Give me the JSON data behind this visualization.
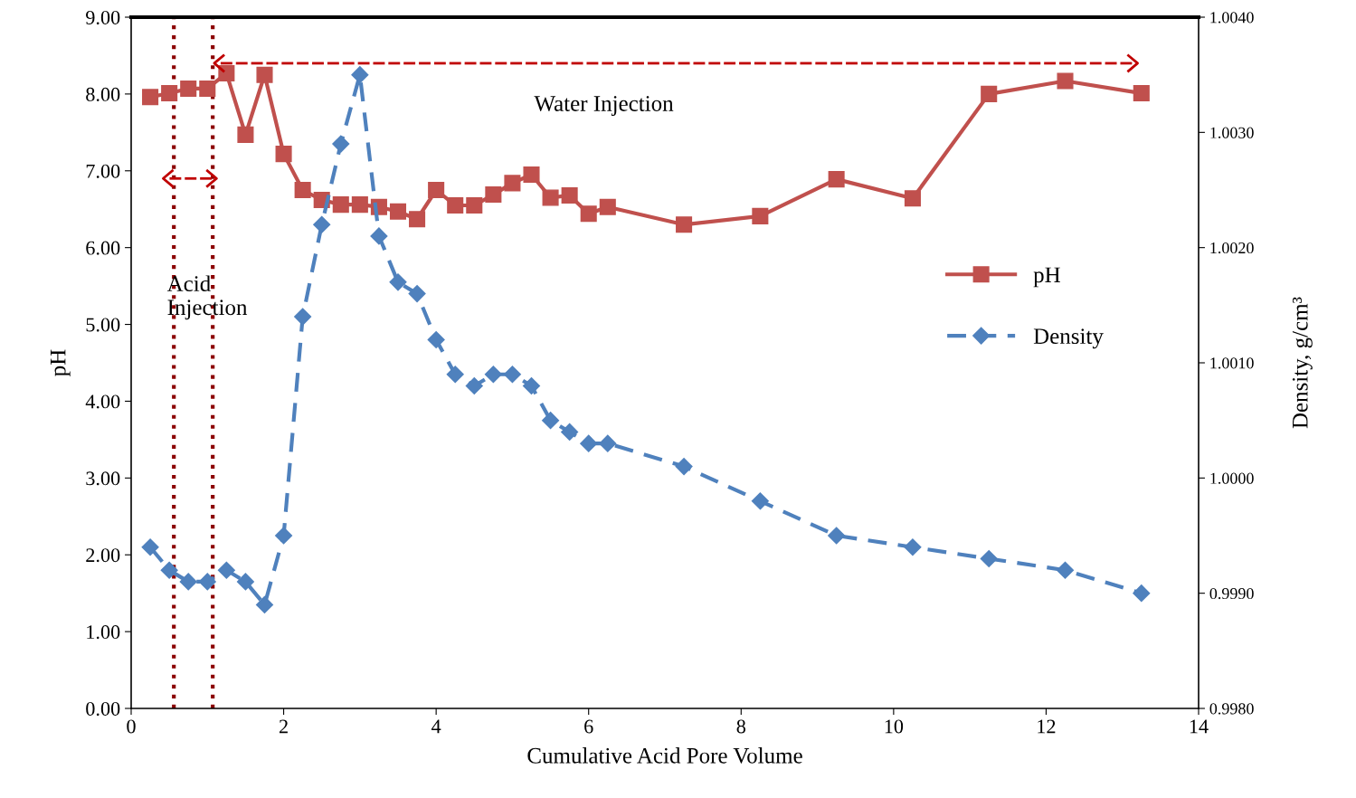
{
  "chart_data": {
    "type": "line",
    "xlabel": "Cumulative Acid Pore Volume",
    "ylabel": "pH",
    "y2label": "Density, g/cm³",
    "x": [
      0.25,
      0.5,
      0.75,
      1.0,
      1.25,
      1.5,
      1.75,
      2.0,
      2.25,
      2.5,
      2.75,
      3.0,
      3.25,
      3.5,
      3.75,
      4.0,
      4.25,
      4.5,
      4.75,
      5.0,
      5.25,
      5.5,
      5.75,
      6.0,
      6.25,
      7.25,
      8.25,
      9.25,
      10.25,
      11.25,
      12.25,
      13.25
    ],
    "series": [
      {
        "name": "pH",
        "color": "#c0504d",
        "marker": "square",
        "line_style": "solid",
        "values": [
          7.96,
          8.01,
          8.07,
          8.07,
          8.27,
          7.47,
          8.25,
          7.22,
          6.75,
          6.62,
          6.56,
          6.56,
          6.53,
          6.47,
          6.37,
          6.75,
          6.55,
          6.55,
          6.69,
          6.84,
          6.95,
          6.65,
          6.68,
          6.44,
          6.53,
          6.3,
          6.41,
          6.89,
          6.64,
          8.0,
          8.17,
          8.01
        ]
      },
      {
        "name": "Density",
        "color": "#4f81bd",
        "marker": "diamond",
        "line_style": "dashed",
        "axis": "y2",
        "values": [
          0.9994,
          0.9992,
          0.9991,
          0.9991,
          0.9992,
          0.9991,
          0.9989,
          0.9995,
          1.0014,
          1.0022,
          1.0029,
          1.0035,
          1.0021,
          1.0017,
          1.0016,
          1.0012,
          1.0009,
          1.0008,
          1.0009,
          1.0009,
          1.0008,
          1.0005,
          1.0004,
          1.0003,
          1.0003,
          1.0001,
          0.9998,
          0.9995,
          0.9994,
          0.9993,
          0.9992,
          0.999
        ]
      }
    ],
    "xlim": [
      0,
      14
    ],
    "xticks": [
      0,
      2,
      4,
      6,
      8,
      10,
      12,
      14
    ],
    "ylim": [
      0,
      9
    ],
    "yticks": [
      {
        "value": 0,
        "label": "0.00"
      },
      {
        "value": 1,
        "label": "1.00"
      },
      {
        "value": 2,
        "label": "2.00"
      },
      {
        "value": 3,
        "label": "3.00"
      },
      {
        "value": 4,
        "label": "4.00"
      },
      {
        "value": 5,
        "label": "5.00"
      },
      {
        "value": 6,
        "label": "6.00"
      },
      {
        "value": 7,
        "label": "7.00"
      },
      {
        "value": 8,
        "label": "8.00"
      },
      {
        "value": 9,
        "label": "9.00"
      }
    ],
    "y2lim": [
      0.998,
      1.004
    ],
    "y2ticks": [
      {
        "value": 0.998,
        "label": "0.9980"
      },
      {
        "value": 0.999,
        "label": "0.9990"
      },
      {
        "value": 1.0,
        "label": "1.0000"
      },
      {
        "value": 1.001,
        "label": "1.0010"
      },
      {
        "value": 1.002,
        "label": "1.0020"
      },
      {
        "value": 1.003,
        "label": "1.0030"
      },
      {
        "value": 1.004,
        "label": "1.0040"
      }
    ],
    "ref_lines": [
      {
        "axis": "x",
        "value": 0.56,
        "color": "#8b0000",
        "line_style": "dotted"
      },
      {
        "axis": "x",
        "value": 1.07,
        "color": "#8b0000",
        "line_style": "dotted"
      }
    ],
    "annotations": [
      "Acid Injection",
      "Water Injection"
    ],
    "grid": false,
    "legend": "right"
  }
}
